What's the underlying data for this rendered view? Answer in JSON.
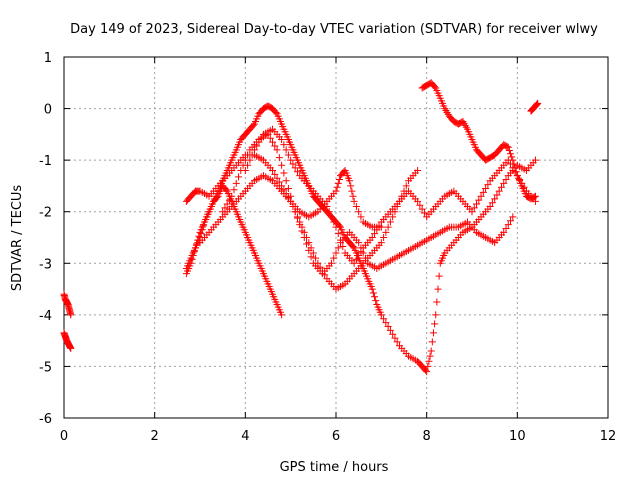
{
  "chart_data": {
    "type": "scatter",
    "title": "Day 149 of 2023, Sidereal Day-to-day VTEC variation (SDTVAR) for receiver wlwy",
    "xlabel": "GPS time / hours",
    "ylabel": "SDTVAR / TECUs",
    "xlim": [
      0,
      12
    ],
    "ylim": [
      -6,
      1
    ],
    "xticks": [
      0,
      2,
      4,
      6,
      8,
      10,
      12
    ],
    "yticks": [
      -6,
      -5,
      -4,
      -3,
      -2,
      -1,
      0,
      1
    ],
    "grid": true,
    "marker": "+",
    "series_color": "#ff0000",
    "series": [
      {
        "x": [
          0.0,
          0.03,
          0.06,
          0.09,
          0.12,
          0.15
        ],
        "y": [
          -3.6,
          -3.7,
          -3.75,
          -3.8,
          -3.9,
          -4.0
        ]
      },
      {
        "x": [
          0.0,
          0.03,
          0.06,
          0.09,
          0.12,
          0.15
        ],
        "y": [
          -4.35,
          -4.42,
          -4.5,
          -4.55,
          -4.6,
          -4.65
        ]
      },
      {
        "x": [
          2.7,
          2.8,
          2.9,
          3.0,
          3.1,
          3.2,
          3.3,
          3.4,
          3.5,
          3.6,
          3.7,
          3.8,
          3.9,
          4.0,
          4.1,
          4.2,
          4.3,
          4.4,
          4.5,
          4.6,
          4.7,
          4.8,
          4.9,
          5.0,
          5.1,
          5.2,
          5.3,
          5.4,
          5.5,
          5.6,
          5.7,
          5.8,
          5.9,
          6.0,
          6.1,
          6.2,
          6.3,
          6.4,
          6.5,
          6.6,
          6.7,
          6.8,
          6.9,
          7.0,
          7.2,
          7.4,
          7.6,
          7.8,
          7.9,
          8.0,
          8.1,
          8.2,
          8.3,
          8.4,
          8.6,
          8.8,
          9.0,
          9.2,
          9.4,
          9.6,
          9.8,
          10.0,
          10.2,
          10.4
        ],
        "y": [
          -3.2,
          -3.0,
          -2.7,
          -2.5,
          -2.2,
          -2.0,
          -1.8,
          -1.6,
          -1.4,
          -1.2,
          -1.0,
          -0.8,
          -0.6,
          -0.5,
          -0.4,
          -0.3,
          -0.1,
          0.0,
          0.05,
          0.0,
          -0.1,
          -0.3,
          -0.5,
          -0.7,
          -0.9,
          -1.1,
          -1.3,
          -1.5,
          -1.7,
          -1.8,
          -1.9,
          -2.0,
          -2.1,
          -2.2,
          -2.3,
          -2.5,
          -2.6,
          -2.7,
          -2.9,
          -3.1,
          -3.3,
          -3.5,
          -3.8,
          -4.0,
          -4.3,
          -4.6,
          -4.8,
          -4.9,
          -5.0,
          -5.1,
          -4.7,
          -4.0,
          -3.0,
          -2.8,
          -2.6,
          -2.4,
          -2.3,
          -2.1,
          -1.9,
          -1.6,
          -1.3,
          -1.1,
          -1.2,
          -1.0
        ]
      },
      {
        "x": [
          2.7,
          2.8,
          2.9,
          3.0,
          3.1,
          3.2,
          3.3,
          3.4,
          3.5,
          3.6,
          3.7,
          3.8,
          3.9,
          4.0,
          4.1,
          4.2,
          4.3,
          4.4,
          4.5,
          4.6,
          4.7,
          4.8
        ],
        "y": [
          -3.1,
          -2.9,
          -2.7,
          -2.4,
          -2.2,
          -2.0,
          -1.8,
          -1.7,
          -1.5,
          -1.6,
          -1.8,
          -2.0,
          -2.2,
          -2.4,
          -2.6,
          -2.8,
          -3.0,
          -3.2,
          -3.4,
          -3.6,
          -3.8,
          -4.0
        ]
      },
      {
        "x": [
          2.7,
          2.8,
          2.9,
          3.0,
          3.2,
          3.4,
          3.6,
          3.8,
          4.0,
          4.2,
          4.4,
          4.6,
          4.8,
          5.0,
          5.2,
          5.4,
          5.6,
          5.8,
          6.0,
          6.2,
          6.4,
          6.6,
          6.8,
          7.0,
          7.2,
          7.4,
          7.6,
          7.8
        ],
        "y": [
          -1.8,
          -1.7,
          -1.6,
          -1.6,
          -1.7,
          -1.5,
          -1.3,
          -1.1,
          -0.9,
          -0.9,
          -1.0,
          -1.2,
          -1.5,
          -1.8,
          -2.2,
          -2.6,
          -3.0,
          -3.3,
          -3.5,
          -3.4,
          -3.2,
          -3.0,
          -2.8,
          -2.6,
          -2.2,
          -1.8,
          -1.4,
          -1.2
        ]
      },
      {
        "x": [
          3.0,
          3.2,
          3.4,
          3.6,
          3.8,
          4.0,
          4.2,
          4.4,
          4.6,
          4.8,
          5.0,
          5.2,
          5.4,
          5.6,
          5.8,
          6.0,
          6.1,
          6.2,
          6.3,
          6.4,
          6.6,
          6.8,
          7.0
        ],
        "y": [
          -2.6,
          -2.4,
          -2.2,
          -2.0,
          -1.8,
          -1.6,
          -1.4,
          -1.3,
          -1.4,
          -1.6,
          -1.8,
          -2.0,
          -2.1,
          -2.0,
          -1.8,
          -1.6,
          -1.3,
          -1.2,
          -1.4,
          -1.8,
          -2.2,
          -2.3,
          -2.3
        ]
      },
      {
        "x": [
          3.5,
          3.7,
          3.9,
          4.1,
          4.3,
          4.5,
          4.7,
          4.9,
          5.1,
          5.3,
          5.5,
          5.7,
          5.9,
          6.1,
          6.3,
          6.5,
          6.7,
          6.9,
          7.1,
          7.3,
          7.5,
          7.7,
          7.9,
          8.1,
          8.3,
          8.5,
          8.7,
          8.9,
          9.1,
          9.3,
          9.5,
          9.7,
          9.9
        ],
        "y": [
          -2.0,
          -1.7,
          -1.2,
          -0.8,
          -0.6,
          -0.5,
          -0.8,
          -1.4,
          -2.0,
          -2.5,
          -3.0,
          -3.2,
          -3.0,
          -2.6,
          -2.4,
          -2.6,
          -3.0,
          -3.1,
          -3.0,
          -2.9,
          -2.8,
          -2.7,
          -2.6,
          -2.5,
          -2.4,
          -2.3,
          -2.3,
          -2.2,
          -2.4,
          -2.5,
          -2.6,
          -2.4,
          -2.1
        ]
      },
      {
        "x": [
          4.0,
          4.2,
          4.4,
          4.6,
          4.8,
          5.0,
          5.2,
          5.4,
          5.6,
          5.8,
          6.0,
          6.2,
          6.4,
          6.6,
          6.8,
          7.0,
          7.2,
          7.4,
          7.6,
          7.8,
          8.0,
          8.2,
          8.4,
          8.6,
          8.8,
          9.0,
          9.2,
          9.4,
          9.6,
          9.8,
          10.0,
          10.2,
          10.4
        ],
        "y": [
          -1.2,
          -0.8,
          -0.5,
          -0.4,
          -0.6,
          -1.0,
          -1.3,
          -1.5,
          -1.7,
          -1.9,
          -2.3,
          -2.8,
          -3.0,
          -2.7,
          -2.5,
          -2.2,
          -2.0,
          -1.8,
          -1.6,
          -1.8,
          -2.1,
          -1.9,
          -1.7,
          -1.6,
          -1.8,
          -2.0,
          -1.7,
          -1.4,
          -1.2,
          -1.0,
          -1.3,
          -1.6,
          -1.8
        ]
      },
      {
        "x": [
          7.9,
          8.0,
          8.1,
          8.2,
          8.3,
          8.4,
          8.5,
          8.6,
          8.7,
          8.8,
          8.9,
          9.0,
          9.1,
          9.2,
          9.3,
          9.4,
          9.5,
          9.6,
          9.7,
          9.8,
          9.9,
          10.0,
          10.1,
          10.2,
          10.3,
          10.4
        ],
        "y": [
          0.4,
          0.45,
          0.5,
          0.4,
          0.2,
          0.0,
          -0.15,
          -0.25,
          -0.3,
          -0.25,
          -0.4,
          -0.6,
          -0.8,
          -0.9,
          -1.0,
          -0.95,
          -0.9,
          -0.8,
          -0.7,
          -0.75,
          -1.0,
          -1.3,
          -1.5,
          -1.7,
          -1.75,
          -1.7
        ]
      },
      {
        "x": [
          10.3,
          10.35,
          10.4,
          10.45
        ],
        "y": [
          -0.05,
          0.0,
          0.05,
          0.1
        ]
      }
    ]
  }
}
